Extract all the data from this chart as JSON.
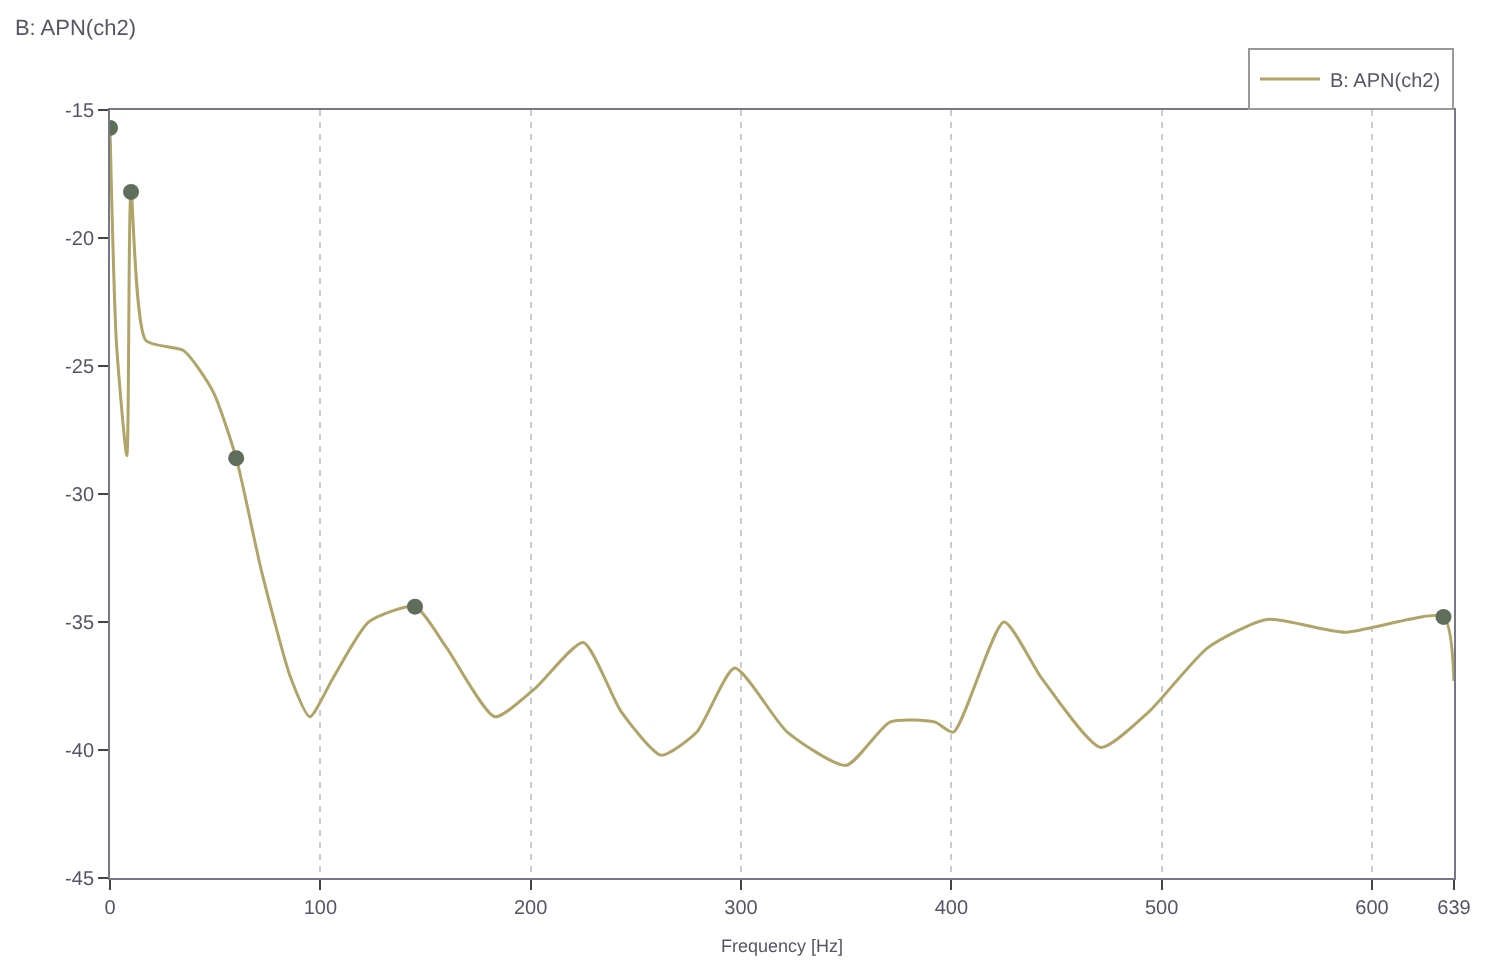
{
  "chart_data": {
    "type": "line",
    "title": "B: APN(ch2)",
    "xlabel": "Frequency [Hz]",
    "series": [
      {
        "name": "B: APN(ch2)",
        "color": "#b0a468",
        "x": [
          0,
          3,
          8,
          10,
          17,
          35,
          49,
          60,
          72,
          86,
          95,
          106,
          123,
          145,
          160,
          183,
          202,
          225,
          243,
          262,
          279,
          297,
          322,
          350,
          371,
          392,
          401,
          425,
          443,
          471,
          494,
          522,
          550,
          587,
          634,
          639
        ],
        "values": [
          -15.7,
          -24,
          -28.5,
          -18.2,
          -24,
          -24.4,
          -26,
          -28.6,
          -33,
          -37.2,
          -38.7,
          -37.2,
          -35,
          -34.4,
          -36,
          -38.7,
          -37.6,
          -35.8,
          -38.5,
          -40.2,
          -39.3,
          -36.8,
          -39.3,
          -40.6,
          -38.9,
          -38.9,
          -39.3,
          -35,
          -37.2,
          -39.9,
          -38.5,
          -36,
          -34.9,
          -35.4,
          -34.8,
          -37.3
        ]
      },
      {
        "type": "scatter",
        "color": "#5f6e5a",
        "marker": "circle",
        "x": [
          0,
          10,
          60,
          145,
          634
        ],
        "values": [
          -15.7,
          -18.2,
          -28.6,
          -34.4,
          -34.8
        ]
      }
    ],
    "xlim": [
      0,
      639
    ],
    "xticks": [
      0,
      100,
      200,
      300,
      400,
      500,
      600,
      639
    ],
    "ylim": [
      -45,
      -15
    ],
    "yticks": [
      -45,
      -40,
      -35,
      -30,
      -25,
      -20,
      -15
    ],
    "grid": "x",
    "legend": "top right",
    "marker": "none"
  }
}
